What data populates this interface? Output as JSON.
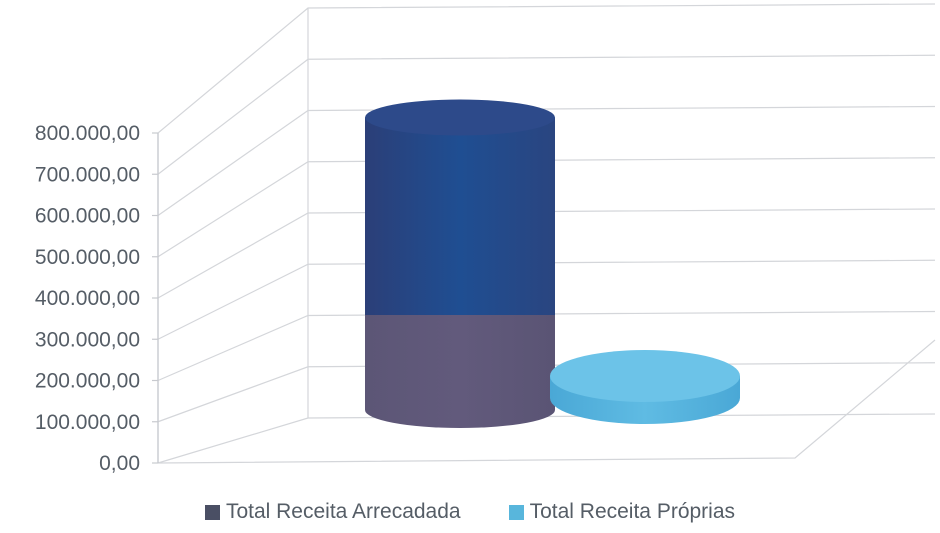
{
  "chart_data": {
    "type": "bar",
    "style": "3d-cylinder",
    "categories": [
      ""
    ],
    "series": [
      {
        "name": "Total Receita Arrecadada",
        "values": [
          780000
        ],
        "color": "#2c4a7e"
      },
      {
        "name": "Total Receita Próprias",
        "values": [
          140000
        ],
        "color": "#58b6dc"
      }
    ],
    "ylim": [
      0,
      800000
    ],
    "yticks": [
      0,
      100000,
      200000,
      300000,
      400000,
      500000,
      600000,
      700000,
      800000
    ],
    "ytick_labels": [
      "0,00",
      "100.000,00",
      "200.000,00",
      "300.000,00",
      "400.000,00",
      "500.000,00",
      "600.000,00",
      "700.000,00",
      "800.000,00"
    ],
    "grid": true,
    "legend_position": "bottom",
    "title": "",
    "xlabel": "",
    "ylabel": ""
  }
}
